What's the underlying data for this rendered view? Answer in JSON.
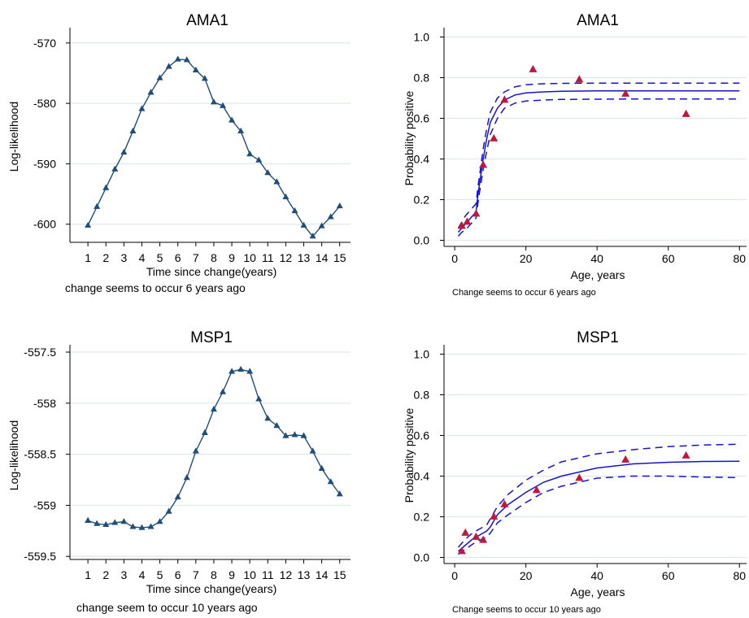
{
  "colors": {
    "ll_line": "#1f4e79",
    "ll_marker": "#1f4e79",
    "fit_line": "#1515c8",
    "observed_marker": "#c0173f",
    "grid": "#dfe8ef",
    "axis": "#000000"
  },
  "chart_data": [
    {
      "type": "line",
      "title": "AMA1",
      "xlabel": "Time since change(years)",
      "ylabel": "Log-likelihood",
      "note": "change seems to occur 6 years ago",
      "grid": true,
      "marker": "triangle",
      "xlim": [
        0,
        15.6
      ],
      "ylim": [
        -603,
        -568
      ],
      "xticks": [
        1,
        2,
        3,
        4,
        5,
        6,
        7,
        8,
        9,
        10,
        11,
        12,
        13,
        14,
        15
      ],
      "xticklabels": [
        "1",
        "2",
        "3",
        "4",
        "5",
        "6",
        "7",
        "8",
        "9",
        "10",
        "11",
        "12",
        "13",
        "14",
        "15"
      ],
      "yticks": [
        -570,
        -580,
        -590,
        -600
      ],
      "yticklabels": [
        "-570",
        "-580",
        "-590",
        "-600"
      ],
      "series": [
        {
          "x": [
            1,
            1.5,
            2,
            2.5,
            3,
            3.5,
            4,
            4.5,
            5,
            5.5,
            6,
            6.5,
            7,
            7.5,
            8,
            8.5,
            9,
            9.5,
            10,
            10.5,
            11,
            11.5,
            12,
            12.5,
            13,
            13.5,
            14,
            14.5,
            15
          ],
          "y": [
            -600.2,
            -597.1,
            -594.0,
            -590.9,
            -588.1,
            -584.6,
            -580.9,
            -578.2,
            -575.8,
            -573.9,
            -572.7,
            -572.8,
            -574.5,
            -575.9,
            -579.8,
            -580.4,
            -582.8,
            -584.6,
            -588.4,
            -589.4,
            -591.5,
            -593.0,
            -595.5,
            -597.8,
            -600.2,
            -602.0,
            -600.3,
            -598.8,
            -597.0
          ]
        }
      ]
    },
    {
      "type": "scatter",
      "title": "AMA1",
      "xlabel": "Age, years",
      "ylabel": "Probability positive",
      "note": "Change seems to occur 6 years ago",
      "grid": true,
      "marker": "triangle",
      "xlim": [
        -3,
        82
      ],
      "ylim": [
        -0.03,
        1.03
      ],
      "xticks": [
        0,
        20,
        40,
        60,
        80
      ],
      "xticklabels": [
        "0",
        "20",
        "40",
        "60",
        "80"
      ],
      "yticks": [
        0,
        0.2,
        0.4,
        0.6,
        0.8,
        1.0
      ],
      "yticklabels": [
        "0.0",
        "0.2",
        "0.4",
        "0.6",
        "0.8",
        "1.0"
      ],
      "observed": {
        "x": [
          2,
          3.5,
          6,
          8,
          11,
          14,
          22,
          35,
          48,
          65
        ],
        "y": [
          0.07,
          0.09,
          0.13,
          0.37,
          0.5,
          0.69,
          0.84,
          0.79,
          0.72,
          0.62
        ]
      },
      "fit": {
        "x": [
          1,
          2,
          3,
          4,
          5,
          6,
          6.5,
          7,
          8,
          9,
          10,
          12,
          14,
          17,
          20,
          25,
          30,
          40,
          50,
          60,
          70,
          80
        ],
        "y": [
          0.04,
          0.06,
          0.08,
          0.1,
          0.12,
          0.14,
          0.22,
          0.28,
          0.4,
          0.5,
          0.58,
          0.65,
          0.69,
          0.715,
          0.725,
          0.73,
          0.733,
          0.735,
          0.735,
          0.735,
          0.735,
          0.735
        ]
      },
      "ci_upper": {
        "x": [
          1,
          2,
          3,
          4,
          5,
          6,
          6.5,
          7,
          8,
          9,
          10,
          12,
          14,
          17,
          20,
          25,
          30,
          40,
          50,
          60,
          70,
          80
        ],
        "y": [
          0.06,
          0.09,
          0.12,
          0.14,
          0.16,
          0.18,
          0.26,
          0.32,
          0.45,
          0.55,
          0.63,
          0.7,
          0.73,
          0.755,
          0.765,
          0.77,
          0.772,
          0.773,
          0.773,
          0.773,
          0.773,
          0.773
        ]
      },
      "ci_lower": {
        "x": [
          1,
          2,
          3,
          4,
          5,
          6,
          6.5,
          7,
          8,
          9,
          10,
          12,
          14,
          17,
          20,
          25,
          30,
          40,
          50,
          60,
          70,
          80
        ],
        "y": [
          0.02,
          0.04,
          0.05,
          0.07,
          0.09,
          0.11,
          0.18,
          0.24,
          0.35,
          0.44,
          0.52,
          0.6,
          0.65,
          0.675,
          0.685,
          0.69,
          0.693,
          0.694,
          0.695,
          0.695,
          0.695,
          0.695
        ]
      }
    },
    {
      "type": "line",
      "title": "MSP1",
      "xlabel": "Time since change(years)",
      "ylabel": "Log-likelihood",
      "note": "change seem to occur 10 years ago",
      "grid": true,
      "marker": "triangle",
      "xlim": [
        0,
        15.6
      ],
      "ylim": [
        -559.53,
        -557.46
      ],
      "xticks": [
        1,
        2,
        3,
        4,
        5,
        6,
        7,
        8,
        9,
        10,
        11,
        12,
        13,
        14,
        15
      ],
      "xticklabels": [
        "1",
        "2",
        "3",
        "4",
        "5",
        "6",
        "7",
        "8",
        "9",
        "10",
        "11",
        "12",
        "13",
        "14",
        "15"
      ],
      "yticks": [
        -557.5,
        -558,
        -558.5,
        -559,
        -559.5
      ],
      "yticklabels": [
        "-557.5",
        "-558",
        "-558.5",
        "-559",
        "-559.5"
      ],
      "series": [
        {
          "x": [
            1,
            1.5,
            2,
            2.5,
            3,
            3.5,
            4,
            4.5,
            5,
            5.5,
            6,
            6.5,
            7,
            7.5,
            8,
            8.5,
            9,
            9.5,
            10,
            10.5,
            11,
            11.5,
            12,
            12.5,
            13,
            13.5,
            14,
            14.5,
            15
          ],
          "y": [
            -559.15,
            -559.18,
            -559.19,
            -559.17,
            -559.16,
            -559.21,
            -559.22,
            -559.21,
            -559.16,
            -559.06,
            -558.92,
            -558.73,
            -558.47,
            -558.29,
            -558.06,
            -557.89,
            -557.69,
            -557.67,
            -557.69,
            -557.96,
            -558.15,
            -558.22,
            -558.32,
            -558.31,
            -558.32,
            -558.47,
            -558.64,
            -558.77,
            -558.89
          ]
        }
      ]
    },
    {
      "type": "scatter",
      "title": "MSP1",
      "xlabel": "Age, years",
      "ylabel": "Probability positive",
      "note": "Change seems to occur 10 years ago",
      "grid": true,
      "marker": "triangle",
      "xlim": [
        -3,
        82
      ],
      "ylim": [
        -0.03,
        1.03
      ],
      "xticks": [
        0,
        20,
        40,
        60,
        80
      ],
      "xticklabels": [
        "0",
        "20",
        "40",
        "60",
        "80"
      ],
      "yticks": [
        0,
        0.2,
        0.4,
        0.6,
        0.8,
        1.0
      ],
      "yticklabels": [
        "0.0",
        "0.2",
        "0.4",
        "0.6",
        "0.8",
        "1.0"
      ],
      "observed": {
        "x": [
          2,
          3,
          6,
          8,
          11,
          14,
          23,
          35,
          48,
          65
        ],
        "y": [
          0.03,
          0.12,
          0.1,
          0.085,
          0.2,
          0.26,
          0.33,
          0.39,
          0.48,
          0.5
        ]
      },
      "fit": {
        "x": [
          1,
          3,
          5,
          7,
          9,
          10,
          12,
          15,
          20,
          25,
          30,
          40,
          50,
          60,
          70,
          80
        ],
        "y": [
          0.03,
          0.06,
          0.09,
          0.11,
          0.13,
          0.15,
          0.21,
          0.26,
          0.32,
          0.37,
          0.4,
          0.44,
          0.46,
          0.468,
          0.472,
          0.473
        ]
      },
      "ci_upper": {
        "x": [
          1,
          3,
          5,
          7,
          9,
          10,
          12,
          15,
          20,
          25,
          30,
          40,
          50,
          60,
          70,
          80
        ],
        "y": [
          0.05,
          0.09,
          0.12,
          0.14,
          0.16,
          0.19,
          0.25,
          0.31,
          0.38,
          0.43,
          0.47,
          0.51,
          0.53,
          0.545,
          0.553,
          0.557
        ]
      },
      "ci_lower": {
        "x": [
          1,
          3,
          5,
          7,
          9,
          10,
          12,
          15,
          20,
          25,
          30,
          40,
          50,
          60,
          70,
          80
        ],
        "y": [
          0.015,
          0.04,
          0.065,
          0.085,
          0.1,
          0.12,
          0.17,
          0.21,
          0.27,
          0.32,
          0.35,
          0.39,
          0.4,
          0.4,
          0.395,
          0.393
        ]
      }
    }
  ]
}
